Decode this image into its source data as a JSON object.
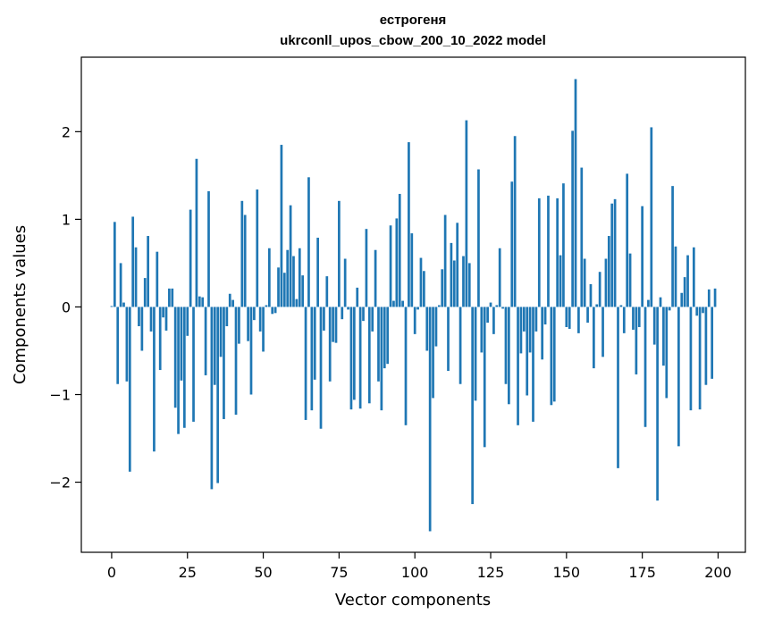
{
  "chart_data": {
    "type": "bar",
    "title_line1": "естрогеня",
    "title_line2": "ukrconll_upos_cbow_200_10_2022 model",
    "xlabel": "Vector components",
    "ylabel": "Components values",
    "xlim": [
      -10,
      209
    ],
    "ylim": [
      -2.8,
      2.85
    ],
    "xticks": [
      0,
      25,
      50,
      75,
      100,
      125,
      150,
      175,
      200
    ],
    "yticks": [
      -2,
      -1,
      0,
      1,
      2
    ],
    "ytick_labels": [
      "−2",
      "−1",
      "0",
      "1",
      "2"
    ],
    "bar_color": "#1f77b4",
    "values": [
      0.01,
      0.97,
      -0.88,
      0.5,
      0.05,
      -0.85,
      -1.88,
      1.03,
      0.68,
      -0.22,
      -0.5,
      0.33,
      0.81,
      -0.28,
      -1.65,
      0.63,
      -0.72,
      -0.12,
      -0.27,
      0.21,
      0.21,
      -1.15,
      -1.45,
      -0.84,
      -1.38,
      -0.33,
      1.11,
      -1.31,
      1.69,
      0.12,
      0.11,
      -0.78,
      1.32,
      -2.08,
      -0.89,
      -2.01,
      -0.57,
      -1.28,
      -0.22,
      0.15,
      0.08,
      -1.23,
      -0.42,
      1.21,
      1.05,
      -0.39,
      -1.0,
      -0.15,
      1.34,
      -0.28,
      -0.51,
      0.02,
      0.67,
      -0.08,
      -0.07,
      0.45,
      1.85,
      0.39,
      0.65,
      1.16,
      0.58,
      0.09,
      0.67,
      0.36,
      -1.29,
      1.48,
      -1.18,
      -0.83,
      0.79,
      -1.39,
      -0.27,
      0.35,
      -0.85,
      -0.4,
      -0.41,
      1.21,
      -0.14,
      0.55,
      -0.03,
      -1.17,
      -1.06,
      0.22,
      -1.16,
      -0.16,
      0.89,
      -1.1,
      -0.28,
      0.65,
      -0.85,
      -1.18,
      -0.7,
      -0.65,
      0.93,
      0.07,
      1.01,
      1.29,
      0.07,
      -1.35,
      1.88,
      0.84,
      -0.31,
      -0.03,
      0.56,
      0.41,
      -0.5,
      -2.56,
      -1.04,
      -0.45,
      0.02,
      0.43,
      1.05,
      -0.73,
      0.73,
      0.53,
      0.96,
      -0.88,
      0.58,
      2.13,
      0.5,
      -2.25,
      -1.07,
      1.57,
      -0.52,
      -1.6,
      -0.18,
      0.05,
      -0.31,
      0.02,
      0.67,
      -0.02,
      -0.88,
      -1.11,
      1.43,
      1.95,
      -1.35,
      -0.53,
      -0.28,
      -1.01,
      -0.52,
      -1.31,
      -0.28,
      1.24,
      -0.6,
      -0.2,
      1.27,
      -1.12,
      -1.08,
      1.24,
      0.59,
      1.41,
      -0.23,
      -0.25,
      2.01,
      2.6,
      -0.3,
      1.59,
      0.55,
      -0.18,
      0.26,
      -0.7,
      0.03,
      0.4,
      -0.57,
      0.55,
      0.81,
      1.18,
      1.23,
      -1.84,
      0.02,
      -0.3,
      1.52,
      0.61,
      -0.26,
      -0.77,
      -0.23,
      1.15,
      -1.37,
      0.08,
      2.05,
      -0.43,
      -2.21,
      0.11,
      -0.67,
      -1.04,
      -0.04,
      1.38,
      0.69,
      -1.59,
      0.16,
      0.34,
      0.59,
      -1.18,
      0.68,
      -0.1,
      -1.17,
      -0.07,
      -0.89,
      0.2,
      -0.82,
      0.21
    ]
  }
}
